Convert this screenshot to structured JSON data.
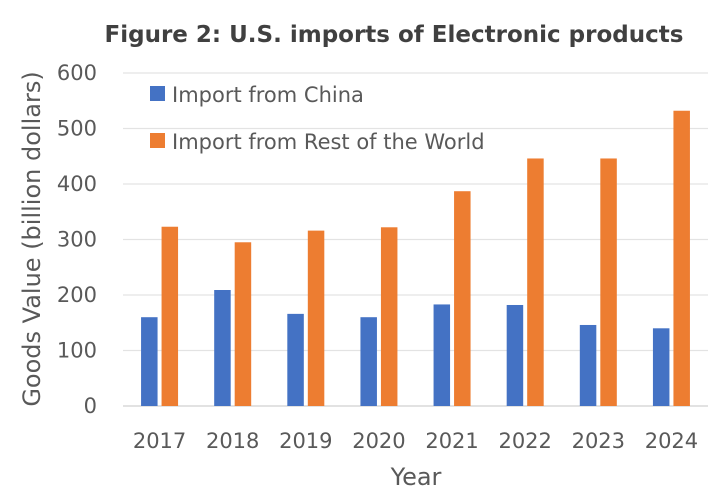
{
  "chart_data": {
    "type": "bar",
    "title": "Figure 2: U.S. imports of Electronic products",
    "xlabel": "Year",
    "ylabel": "Goods Value (billion dollars)",
    "categories": [
      "2017",
      "2018",
      "2019",
      "2020",
      "2021",
      "2022",
      "2023",
      "2024"
    ],
    "series": [
      {
        "name": "Import from China",
        "color": "#4472C4",
        "values": [
          160,
          209,
          166,
          160,
          183,
          182,
          146,
          140
        ]
      },
      {
        "name": "Import from Rest of the World",
        "color": "#ED7D31",
        "values": [
          323,
          295,
          316,
          322,
          387,
          446,
          446,
          532
        ]
      }
    ],
    "ylim": [
      0,
      600
    ],
    "yticks": [
      0,
      100,
      200,
      300,
      400,
      500,
      600
    ],
    "grid": true,
    "legend": "top-left"
  }
}
